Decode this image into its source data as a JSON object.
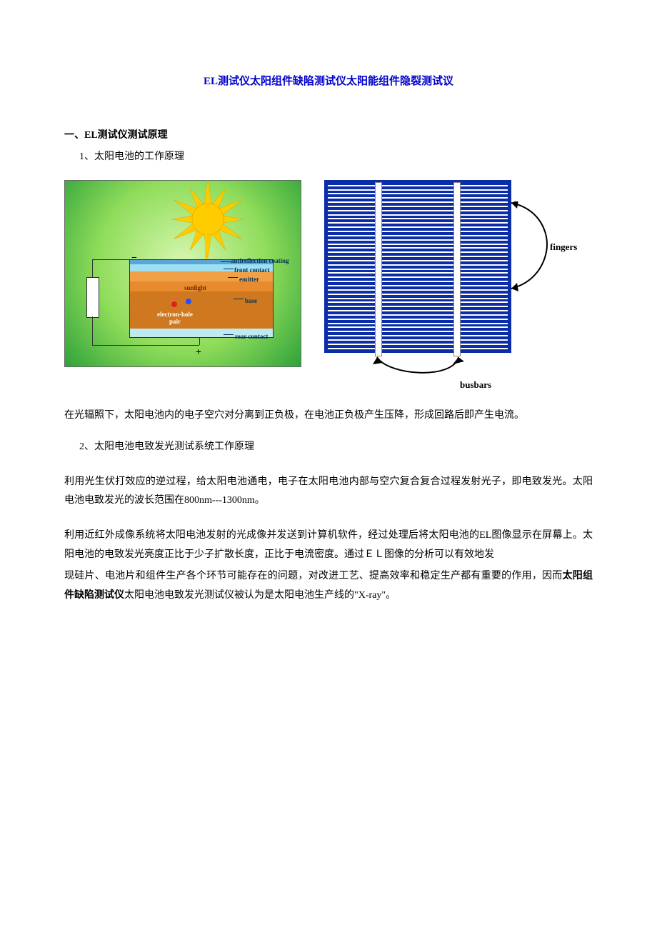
{
  "title": "EL测试仪太阳组件缺陷测试仪太阳能组件隐裂测试议",
  "section1": {
    "heading": "一、EL测试仪测试原理",
    "sub1": "1、太阳电池的工作原理",
    "sub2": "2、太阳电池电致发光测试系统工作原理"
  },
  "fig1": {
    "labels": {
      "antireflection": "antireflection coating",
      "front": "front contact",
      "emitter": "emitter",
      "sunlight": "sunlight",
      "base": "base",
      "rear": "rear contact",
      "ehpair1": "electron-hole",
      "ehpair2": "pair",
      "minus": "−",
      "plus": "+"
    },
    "colors": {
      "bg_inner": "#d8f7b0",
      "bg_mid": "#8fdc5a",
      "bg_outer": "#2fa23a",
      "ar": "#5aa6d8",
      "front": "#9fdff2",
      "emitter": "#f2a048",
      "sunlight_layer": "#e88a2e",
      "base": "#d07820",
      "rear": "#bfe8ef",
      "sun": "#ffcc00",
      "electron_red": "#e02020",
      "electron_blue": "#2050ff"
    }
  },
  "fig2": {
    "labels": {
      "fingers": "fingers",
      "busbars": "busbars"
    },
    "colors": {
      "cell": "#0b2ea8",
      "finger": "#ffffff",
      "busbar": "#ffffff"
    },
    "finger_count": 40,
    "busbar_positions": [
      70,
      180
    ]
  },
  "body": {
    "p1": "在光辐照下，太阳电池内的电子空穴对分离到正负极，在电池正负极产生压降，形成回路后即产生电流。",
    "p2": "利用光生伏打效应的逆过程，给太阳电池通电，电子在太阳电池内部与空穴复合复合过程发射光子，即电致发光。太阳电池电致发光的波长范围在800nm---1300nm。",
    "p3": "利用近红外成像系统将太阳电池发射的光成像并发送到计算机软件，经过处理后将太阳电池的EL图像显示在屏幕上。太阳电池的电致发光亮度正比于少子扩散长度，正比于电流密度。通过ＥＬ图像的分析可以有效地发",
    "p4a": "现硅片、电池片和组件生产各个环节可能存在的问题，对改进工艺、提高效率和稳定生产都有重要的作用，因而",
    "p4b": "太阳组件缺陷测试仪",
    "p4c": "太阳电池电致发光测试仪被认为是太阳电池生产线的\"X-ray\"。"
  }
}
